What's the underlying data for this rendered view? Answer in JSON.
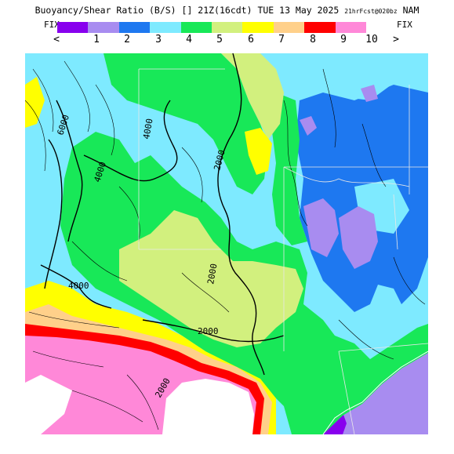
{
  "header": {
    "title": "Buoyancy/Shear Ratio (B/S) [] 21Z(16cdt) TUE 13 May 2025",
    "subtitle": "21hrFcst@020bz",
    "model": "NAM"
  },
  "legend": {
    "fix_left": "FIX",
    "fix_right": "FIX",
    "prev_arrow": "<",
    "next_arrow": ">",
    "swatch_colors": [
      "#8800ee",
      "#a88cf0",
      "#1e78f0",
      "#7eeaff",
      "#18e858",
      "#d2f07e",
      "#ffff00",
      "#ffd08a",
      "#ff0000",
      "#ff88d8"
    ],
    "tick_labels": [
      "1",
      "2",
      "3",
      "4",
      "5",
      "6",
      "7",
      "8",
      "9",
      "10"
    ]
  },
  "map": {
    "contour_labels": [
      "6000",
      "4000",
      "4000",
      "2000",
      "2000",
      "4000",
      "2000",
      "2000"
    ]
  }
}
